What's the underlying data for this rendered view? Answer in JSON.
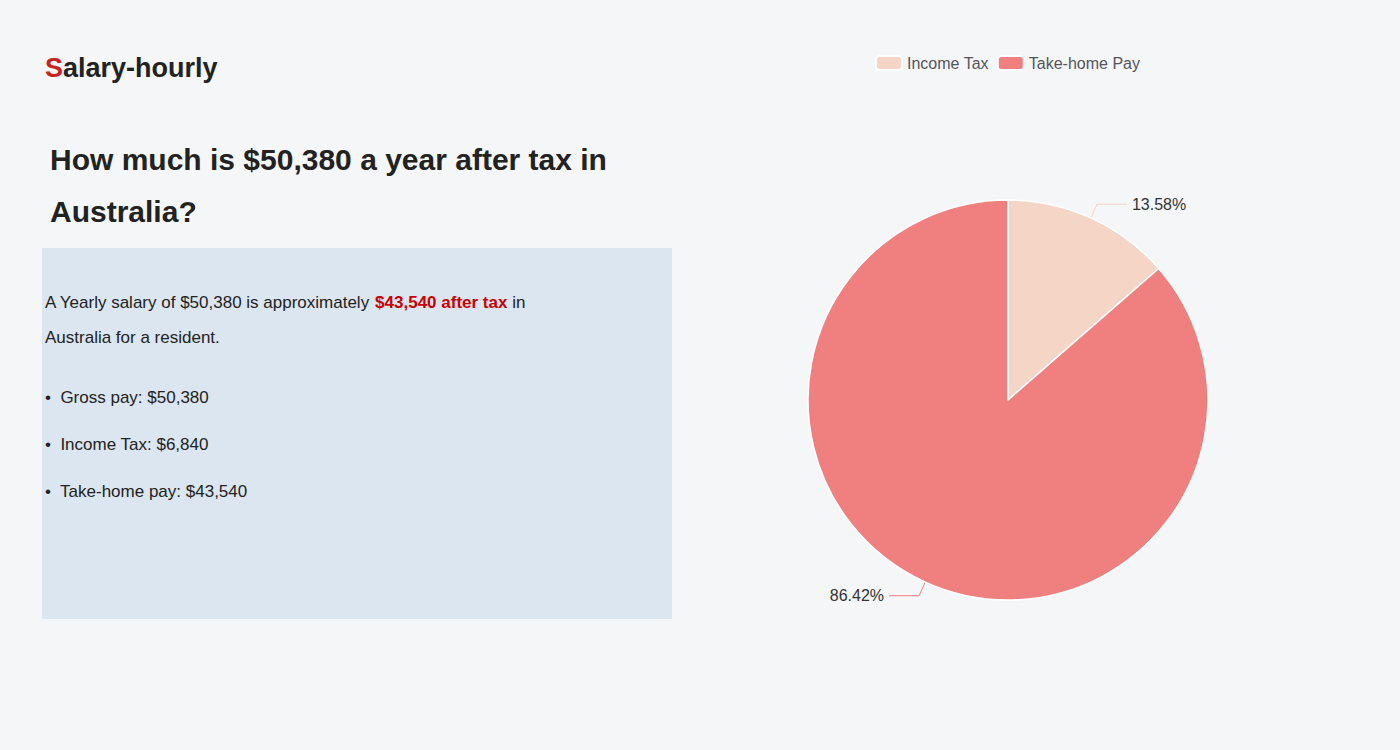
{
  "chart_data": {
    "type": "pie",
    "title": "How much is $50,380 a year after tax in\nAustralia?",
    "categories": [
      "Income Tax",
      "Take-home Pay"
    ],
    "values": [
      13.58,
      86.42
    ],
    "value_labels": [
      "13.58%",
      "86.42%"
    ],
    "colors": [
      "#f5d5c5",
      "#f08080"
    ],
    "data_labels": true,
    "legend": "top",
    "annotations": [
      [
        {
          "text": "S",
          "color": "#cc2222"
        },
        "alary-hourly"
      ],
      [
        "A Yearly salary of $50,380 is approximately ",
        {
          "text": "$43,540 after tax",
          "color": "#cc0000"
        },
        " in"
      ],
      [
        "Australia for a resident."
      ],
      [
        "•  Gross pay: $50,380"
      ],
      [
        "•  Income Tax: $6,840"
      ],
      [
        "•  Take-home pay: $43,540"
      ]
    ]
  }
}
